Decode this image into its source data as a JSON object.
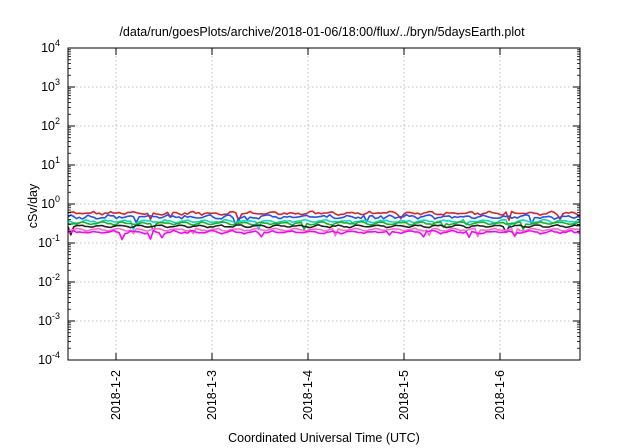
{
  "chart_data": {
    "type": "line",
    "title": "/data/run/goesPlots/archive/2018-01-06/18:00/flux/../bryn/5daysEarth.plot",
    "xlabel": "Coordinated Universal Time (UTC)",
    "ylabel": "cSv/day",
    "yscale": "log",
    "ylim": [
      0.0001,
      10000
    ],
    "xlim": [
      "2018-01-01 12:00",
      "2018-01-06 20:00"
    ],
    "grid": true,
    "y_ticks": [
      {
        "base": "10",
        "exp": "4",
        "value": 10000
      },
      {
        "base": "10",
        "exp": "3",
        "value": 1000
      },
      {
        "base": "10",
        "exp": "2",
        "value": 100
      },
      {
        "base": "10",
        "exp": "1",
        "value": 10
      },
      {
        "base": "10",
        "exp": "0",
        "value": 1
      },
      {
        "base": "10",
        "exp": "-1",
        "value": 0.1
      },
      {
        "base": "10",
        "exp": "-2",
        "value": 0.01
      },
      {
        "base": "10",
        "exp": "-3",
        "value": 0.001
      },
      {
        "base": "10",
        "exp": "-4",
        "value": 0.0001
      }
    ],
    "x_ticks": [
      {
        "label": "2018-1-2",
        "value": "2018-01-02 00:00"
      },
      {
        "label": "2018-1-3",
        "value": "2018-01-03 00:00"
      },
      {
        "label": "2018-1-4",
        "value": "2018-01-04 00:00"
      },
      {
        "label": "2018-1-5",
        "value": "2018-01-05 00:00"
      },
      {
        "label": "2018-1-6",
        "value": "2018-01-06 00:00"
      }
    ],
    "series": [
      {
        "color": "#e02020",
        "level": 0.58,
        "amplitude": 0.07,
        "dips": 0.25
      },
      {
        "color": "#2050ff",
        "level": 0.47,
        "amplitude": 0.08,
        "dips": 0.3
      },
      {
        "color": "#00d8d8",
        "level": 0.36,
        "amplitude": 0.05,
        "dips": 0.2
      },
      {
        "color": "#11bb11",
        "level": 0.32,
        "amplitude": 0.04,
        "dips": 0.15
      },
      {
        "color": "#222222",
        "level": 0.27,
        "amplitude": 0.03,
        "dips": 0.2
      },
      {
        "color": "#ff66cc",
        "level": 0.22,
        "amplitude": 0.03,
        "dips": 0.3
      },
      {
        "color": "#ff00ff",
        "level": 0.19,
        "amplitude": 0.05,
        "dips": 0.6
      }
    ]
  }
}
